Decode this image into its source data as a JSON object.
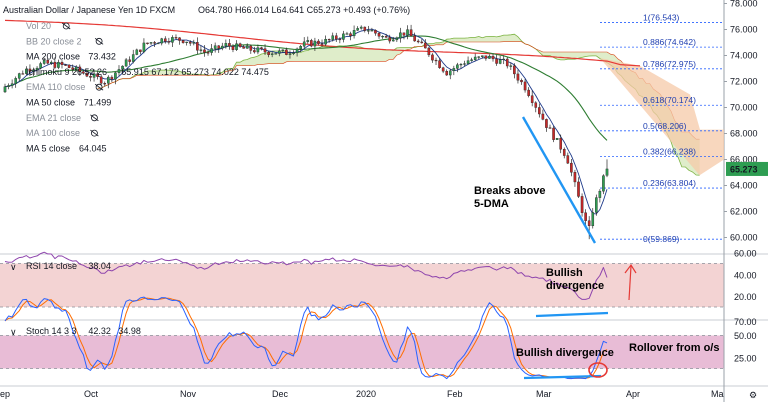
{
  "header": {
    "symbol": "Australian Dollar / Japanese Yen",
    "timeframe": "1D",
    "source": "FXCM",
    "ohlc": "O64.780 H66.014 L64.641 C65.273 +0.493 (+0.76%)"
  },
  "indicators": [
    {
      "label": "Vol 20",
      "value": "",
      "value_color": "",
      "muted": true
    },
    {
      "label": "BB 20 close 2",
      "value": "",
      "value_color": "",
      "muted": true
    },
    {
      "label": "MA 200 close",
      "value": "73.432",
      "value_color": "#e53935",
      "muted": false
    },
    {
      "label": "Ichimoku 9 26 52 26",
      "value": "65.915  67.172  65.273  74.022  74.475",
      "value_color": "#2e7d32",
      "muted": false
    },
    {
      "label": "EMA 110 close",
      "value": "",
      "value_color": "",
      "muted": true
    },
    {
      "label": "MA 50 close",
      "value": "71.499",
      "value_color": "#2e7d32",
      "muted": false
    },
    {
      "label": "EMA 21 close",
      "value": "",
      "value_color": "",
      "muted": true
    },
    {
      "label": "MA 100 close",
      "value": "",
      "value_color": "",
      "muted": true
    },
    {
      "label": "MA 5 close",
      "value": "64.045",
      "value_color": "#1e3a8a",
      "muted": false
    }
  ],
  "price_axis": {
    "ticks": [
      "78.000",
      "76.000",
      "74.000",
      "72.000",
      "70.000",
      "68.000",
      "66.000",
      "64.000",
      "62.000",
      "60.000"
    ],
    "last_price": "65.273"
  },
  "fib_levels": [
    {
      "label": "1(76.543)",
      "value": 76.543
    },
    {
      "label": "0.886(74.642)",
      "value": 74.642
    },
    {
      "label": "0.786(72.975)",
      "value": 72.975
    },
    {
      "label": "0.618(70.174)",
      "value": 70.174
    },
    {
      "label": "0.5(68.206)",
      "value": 68.206
    },
    {
      "label": "0.382(66.238)",
      "value": 66.238
    },
    {
      "label": "0.236(63.804)",
      "value": 63.804
    },
    {
      "label": "0(59.869)",
      "value": 59.869
    }
  ],
  "annotations": {
    "breaks": "Breaks above\n5-DMA",
    "rsi_div": "Bullish\ndivergence",
    "stoch_div": "Bullish divergence",
    "rollover": "Rollover from o/s"
  },
  "rsi": {
    "label": "RSI 14 close",
    "value": "38.04",
    "ticks": [
      "60.00",
      "40.00",
      "20.00"
    ]
  },
  "stoch": {
    "label": "Stoch 14 3 3",
    "k": "42.32",
    "d": "34.98",
    "ticks": [
      "50.00",
      "25.00"
    ]
  },
  "time_axis": [
    "Sep",
    "Oct",
    "Nov",
    "Dec",
    "2020",
    "Feb",
    "Mar",
    "Apr",
    "Ma"
  ],
  "colors": {
    "up": "#2e9d52",
    "down": "#c62828",
    "ma200": "#e53935",
    "ma50": "#2e7d32",
    "ma5": "#1e3a8a",
    "rsi": "#8e44ad",
    "stoch_k": "#2962ff",
    "stoch_d": "#ff6d00",
    "trend": "#2196f3",
    "rsi_bg": "#f3d3d3",
    "stoch_bg": "#e8bcd6"
  },
  "chart_data": {
    "type": "candlestick",
    "title": "Australian Dollar / Japanese Yen 1D FXCM",
    "x": [
      "2019-08-26",
      "2019-09-02",
      "2019-09-09",
      "2019-09-16",
      "2019-09-23",
      "2019-09-30",
      "2019-10-07",
      "2019-10-14",
      "2019-10-21",
      "2019-10-28",
      "2019-11-04",
      "2019-11-11",
      "2019-11-18",
      "2019-11-25",
      "2019-12-02",
      "2019-12-09",
      "2019-12-16",
      "2019-12-23",
      "2019-12-30",
      "2020-01-06",
      "2020-01-13",
      "2020-01-20",
      "2020-01-27",
      "2020-02-03",
      "2020-02-10",
      "2020-02-17",
      "2020-02-24",
      "2020-03-02",
      "2020-03-09",
      "2020-03-16",
      "2020-03-23"
    ],
    "close": [
      71.6,
      72.9,
      73.4,
      73.2,
      72.6,
      72.0,
      73.4,
      74.9,
      75.3,
      75.2,
      74.2,
      74.8,
      74.5,
      74.3,
      74.2,
      74.9,
      75.1,
      75.6,
      76.1,
      75.3,
      75.8,
      74.4,
      72.7,
      73.6,
      73.9,
      73.4,
      71.4,
      68.6,
      66.2,
      60.8,
      65.3
    ],
    "ylim": [
      59.0,
      78.4
    ],
    "ma200": {
      "start": 76.7,
      "end": 73.4
    },
    "ma50_last": 71.499,
    "ma5_last": 64.045,
    "rsi_last": 38.04,
    "stoch_k_last": 42.32,
    "stoch_d_last": 34.98
  }
}
